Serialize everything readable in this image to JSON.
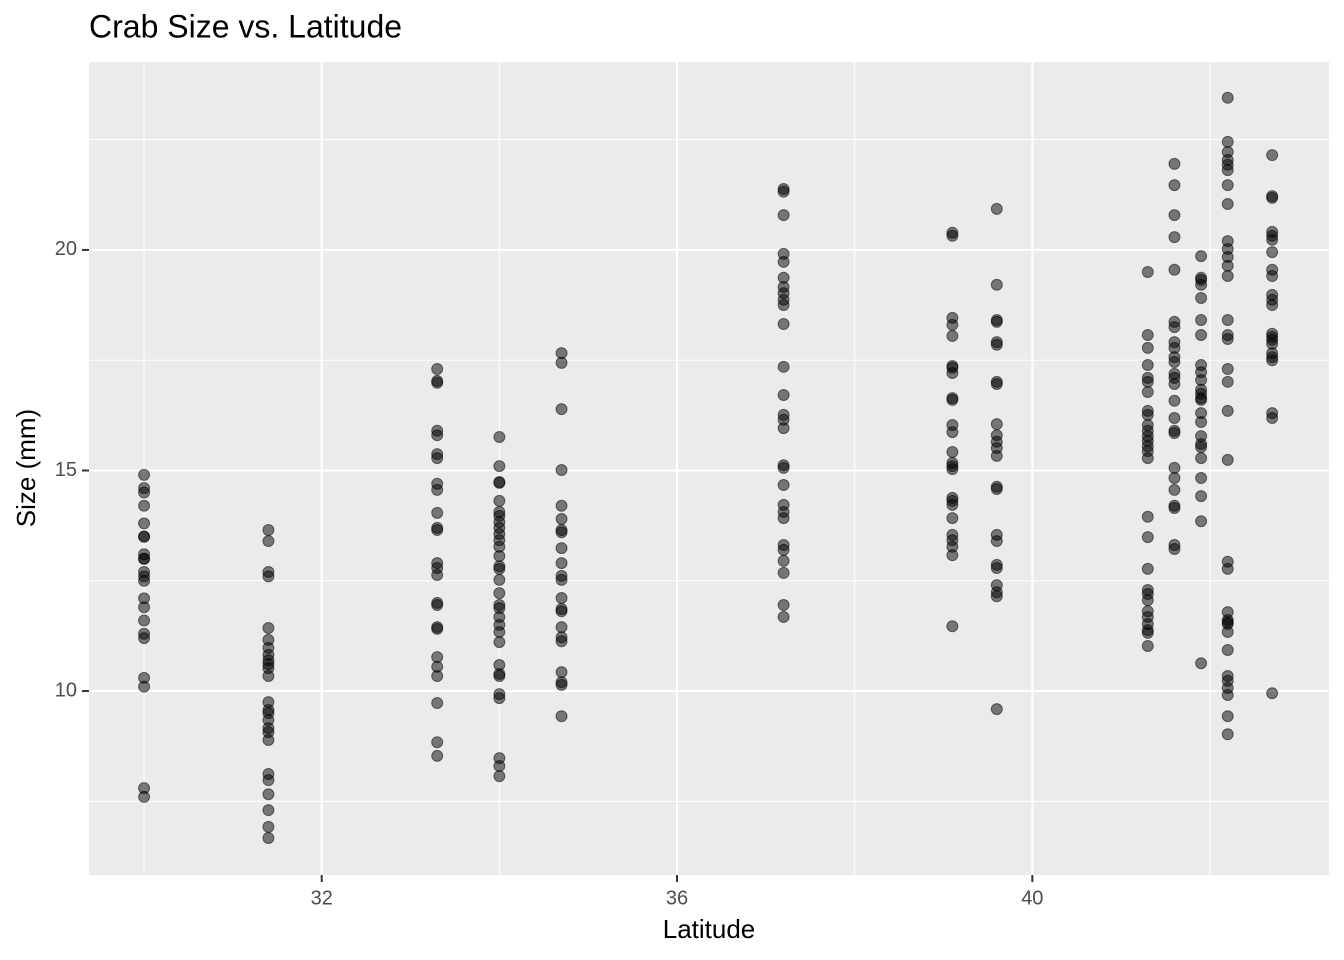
{
  "chart_data": {
    "type": "scatter",
    "title": "Crab Size vs. Latitude",
    "x_label": "Latitude",
    "y_label": "Size (mm)",
    "xlim": [
      29.38,
      43.34
    ],
    "ylim": [
      5.83,
      24.26
    ],
    "xticks": [
      32,
      36,
      40
    ],
    "yticks": [
      10,
      15,
      20
    ],
    "x_minor": [
      30,
      34,
      38,
      42
    ],
    "y_minor": [
      7.5,
      12.5,
      17.5,
      22.5
    ],
    "grid": true,
    "color": "#000000",
    "alpha": 0.5,
    "panel_color": "#ebebeb",
    "x": [
      30,
      30,
      30,
      30,
      30,
      30,
      30,
      30,
      30,
      30,
      30,
      30,
      30,
      30,
      30,
      30,
      30,
      30,
      30,
      30,
      30,
      30,
      31.4,
      31.4,
      31.4,
      31.4,
      31.4,
      31.4,
      31.4,
      31.4,
      31.4,
      31.4,
      31.4,
      31.4,
      31.4,
      31.4,
      31.4,
      31.4,
      31.4,
      31.4,
      31.4,
      31.4,
      31.4,
      31.4,
      31.4,
      31.4,
      31.4,
      33.3,
      33.3,
      33.3,
      33.3,
      33.3,
      33.3,
      33.3,
      33.3,
      33.3,
      33.3,
      33.3,
      33.3,
      33.3,
      33.3,
      33.3,
      33.3,
      33.3,
      33.3,
      33.3,
      33.3,
      33.3,
      33.3,
      33.3,
      33.3,
      33.3,
      34,
      34,
      34,
      34,
      34,
      34,
      34,
      34,
      34,
      34,
      34,
      34,
      34,
      34,
      34,
      34,
      34,
      34,
      34,
      34,
      34,
      34,
      34,
      34,
      34,
      34,
      34,
      34,
      34,
      34,
      34,
      34.7,
      34.7,
      34.7,
      34.7,
      34.7,
      34.7,
      34.7,
      34.7,
      34.7,
      34.7,
      34.7,
      34.7,
      34.7,
      34.7,
      34.7,
      34.7,
      34.7,
      34.7,
      34.7,
      34.7,
      34.7,
      34.7,
      37.2,
      37.2,
      37.2,
      37.2,
      37.2,
      37.2,
      37.2,
      37.2,
      37.2,
      37.2,
      37.2,
      37.2,
      37.2,
      37.2,
      37.2,
      37.2,
      37.2,
      37.2,
      37.2,
      37.2,
      37.2,
      37.2,
      37.2,
      37.2,
      37.2,
      37.2,
      37.2,
      37.2,
      39.1,
      39.1,
      39.1,
      39.1,
      39.1,
      39.1,
      39.1,
      39.1,
      39.1,
      39.1,
      39.1,
      39.1,
      39.1,
      39.1,
      39.1,
      39.1,
      39.1,
      39.1,
      39.1,
      39.1,
      39.1,
      39.1,
      39.1,
      39.1,
      39.1,
      39.6,
      39.6,
      39.6,
      39.6,
      39.6,
      39.6,
      39.6,
      39.6,
      39.6,
      39.6,
      39.6,
      39.6,
      39.6,
      39.6,
      39.6,
      39.6,
      39.6,
      39.6,
      39.6,
      39.6,
      39.6,
      39.6,
      39.6,
      41.3,
      41.3,
      41.3,
      41.3,
      41.3,
      41.3,
      41.3,
      41.3,
      41.3,
      41.3,
      41.3,
      41.3,
      41.3,
      41.3,
      41.3,
      41.3,
      41.3,
      41.3,
      41.3,
      41.3,
      41.3,
      41.3,
      41.3,
      41.3,
      41.3,
      41.3,
      41.3,
      41.3,
      41.6,
      41.6,
      41.6,
      41.6,
      41.6,
      41.6,
      41.6,
      41.6,
      41.6,
      41.6,
      41.6,
      41.6,
      41.6,
      41.6,
      41.6,
      41.6,
      41.6,
      41.6,
      41.6,
      41.6,
      41.6,
      41.6,
      41.6,
      41.6,
      41.6,
      41.9,
      41.9,
      41.9,
      41.9,
      41.9,
      41.9,
      41.9,
      41.9,
      41.9,
      41.9,
      41.9,
      41.9,
      41.9,
      41.9,
      41.9,
      41.9,
      41.9,
      41.9,
      41.9,
      41.9,
      41.9,
      41.9,
      41.9,
      41.9,
      42.2,
      42.2,
      42.2,
      42.2,
      42.2,
      42.2,
      42.2,
      42.2,
      42.2,
      42.2,
      42.2,
      42.2,
      42.2,
      42.2,
      42.2,
      42.2,
      42.2,
      42.2,
      42.2,
      42.2,
      42.2,
      42.2,
      42.2,
      42.2,
      42.2,
      42.2,
      42.2,
      42.2,
      42.2,
      42.2,
      42.2,
      42.2,
      42.2,
      42.2,
      42.7,
      42.7,
      42.7,
      42.7,
      42.7,
      42.7,
      42.7,
      42.7,
      42.7,
      42.7,
      42.7,
      42.7,
      42.7,
      42.7,
      42.7,
      42.7,
      42.7,
      42.7,
      42.7,
      42.7,
      42.7,
      42.7
    ],
    "values": [
      14.9,
      14.6,
      14.5,
      14.2,
      13.8,
      13.5,
      13.5,
      13.1,
      13.0,
      13.0,
      12.7,
      12.6,
      12.5,
      12.1,
      11.9,
      11.6,
      11.3,
      11.2,
      10.3,
      10.1,
      7.8,
      7.6,
      13.65,
      13.4,
      12.7,
      12.6,
      11.43,
      11.16,
      10.98,
      10.82,
      10.7,
      10.61,
      10.52,
      10.34,
      9.75,
      9.57,
      9.5,
      9.34,
      9.16,
      9.07,
      8.89,
      8.12,
      7.98,
      7.66,
      7.3,
      6.92,
      6.67,
      17.3,
      17.03,
      16.99,
      15.9,
      15.8,
      15.37,
      15.28,
      14.7,
      14.56,
      14.04,
      13.7,
      13.65,
      12.9,
      12.79,
      12.63,
      12.0,
      11.95,
      11.45,
      11.41,
      10.77,
      10.55,
      10.34,
      9.73,
      8.84,
      8.53,
      15.76,
      15.1,
      14.74,
      14.72,
      14.31,
      14.06,
      13.97,
      13.83,
      13.7,
      13.56,
      13.42,
      13.27,
      13.06,
      12.83,
      12.77,
      12.52,
      12.22,
      11.95,
      11.88,
      11.68,
      11.5,
      11.34,
      11.11,
      10.59,
      10.39,
      10.34,
      9.93,
      9.84,
      8.48,
      8.3,
      8.07,
      17.66,
      17.44,
      16.39,
      15.01,
      14.2,
      13.9,
      13.65,
      13.6,
      13.24,
      12.9,
      12.61,
      12.52,
      12.11,
      11.86,
      11.81,
      11.45,
      11.22,
      11.13,
      10.43,
      10.2,
      10.14,
      9.43,
      21.38,
      21.32,
      20.79,
      19.91,
      19.73,
      19.37,
      19.16,
      19.02,
      18.87,
      18.75,
      18.32,
      17.35,
      16.71,
      16.26,
      16.15,
      15.96,
      15.12,
      15.06,
      14.67,
      14.22,
      14.06,
      13.92,
      13.31,
      13.2,
      12.95,
      12.68,
      11.95,
      11.68,
      20.39,
      20.32,
      18.46,
      18.3,
      18.05,
      17.37,
      17.33,
      17.21,
      16.64,
      16.6,
      16.03,
      15.87,
      15.42,
      15.17,
      15.1,
      15.03,
      14.38,
      14.31,
      14.22,
      13.92,
      13.54,
      13.42,
      13.27,
      13.08,
      11.47,
      20.93,
      19.21,
      18.41,
      18.37,
      17.91,
      17.85,
      17.01,
      16.96,
      16.05,
      15.8,
      15.65,
      15.51,
      15.33,
      14.63,
      14.58,
      13.54,
      13.4,
      12.86,
      12.79,
      12.4,
      12.24,
      12.15,
      9.59,
      19.5,
      18.07,
      17.78,
      17.39,
      17.1,
      17.01,
      16.78,
      16.35,
      16.26,
      16.03,
      15.9,
      15.78,
      15.67,
      15.55,
      15.44,
      15.28,
      13.95,
      13.49,
      12.77,
      12.29,
      12.2,
      12.06,
      11.81,
      11.68,
      11.52,
      11.38,
      11.32,
      11.02,
      21.95,
      21.47,
      20.79,
      20.29,
      19.55,
      18.37,
      18.25,
      17.91,
      17.78,
      17.57,
      17.46,
      17.19,
      17.1,
      16.96,
      16.58,
      16.19,
      15.9,
      15.85,
      15.06,
      14.83,
      14.56,
      14.2,
      14.15,
      13.31,
      13.22,
      19.86,
      19.37,
      19.32,
      19.21,
      18.91,
      18.41,
      18.07,
      17.39,
      17.23,
      17.05,
      16.83,
      16.74,
      16.64,
      16.6,
      16.3,
      16.1,
      15.78,
      15.6,
      15.53,
      15.28,
      14.83,
      14.42,
      13.85,
      10.63,
      23.45,
      22.45,
      22.22,
      22.04,
      21.93,
      21.81,
      21.47,
      21.04,
      20.2,
      20.02,
      19.84,
      19.64,
      19.41,
      18.41,
      18.07,
      17.98,
      17.3,
      17.01,
      16.35,
      15.24,
      12.93,
      12.77,
      11.79,
      11.61,
      11.56,
      11.52,
      11.34,
      10.93,
      10.34,
      10.23,
      10.07,
      9.91,
      9.43,
      9.02,
      22.15,
      21.22,
      21.18,
      20.41,
      20.32,
      20.23,
      19.95,
      19.55,
      19.41,
      18.98,
      18.87,
      18.75,
      18.1,
      18.03,
      17.96,
      17.87,
      17.66,
      17.57,
      17.5,
      16.3,
      16.19,
      9.95
    ]
  }
}
